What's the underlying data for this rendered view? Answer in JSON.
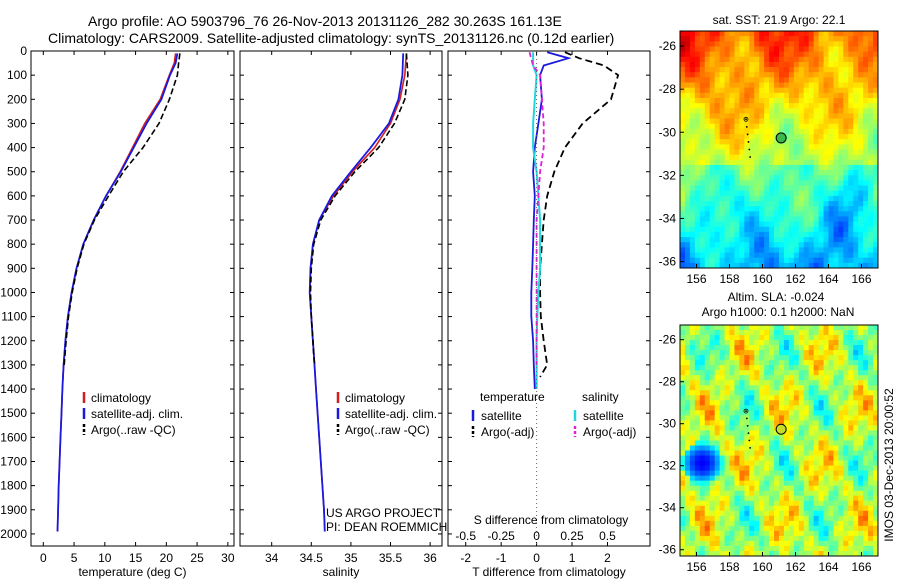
{
  "header": {
    "line1": "Argo profile: AO 5903796_76 26-Nov-2013 20131126_282 30.263S 161.13E",
    "line2": "Climatology: CARS2009. Satellite-adjusted climatology: synTS_20131126.nc (0.12d earlier)"
  },
  "colors": {
    "climatology": "#d11f1f",
    "satellite": "#1a1adf",
    "argo": "#000000",
    "s_satellite": "#22d6e0",
    "s_argo": "#e020d8"
  },
  "depth_axis": {
    "ticks": [
      0,
      100,
      200,
      300,
      400,
      500,
      600,
      700,
      800,
      900,
      1000,
      1100,
      1200,
      1300,
      1400,
      1500,
      1600,
      1700,
      1800,
      1900,
      2000
    ]
  },
  "legends": {
    "climatology": "climatology",
    "satellite_clim": "satellite-adj. clim.",
    "argo_raw": "Argo(..raw -QC)",
    "temperature": "temperature",
    "salinity": "salinity",
    "satellite": "satellite",
    "argo_adj": "Argo(-adj)"
  },
  "credits": {
    "line1": "US ARGO PROJECT",
    "line2": "PI: DEAN ROEMMICH"
  },
  "side_stamp": "IMOS 03-Dec-2013 20:00:52",
  "chart_data": [
    {
      "type": "line",
      "id": "temperature",
      "xlabel": "temperature (deg C)",
      "xlim": [
        -2,
        31
      ],
      "xticks": [
        0,
        5,
        10,
        15,
        20,
        25,
        30
      ],
      "ylim": [
        0,
        2050
      ],
      "series": [
        {
          "name": "climatology",
          "points": [
            [
              21.5,
              10
            ],
            [
              21.3,
              50
            ],
            [
              20.5,
              100
            ],
            [
              19,
              200
            ],
            [
              16.5,
              300
            ],
            [
              14.5,
              400
            ],
            [
              12.5,
              500
            ],
            [
              10.2,
              600
            ],
            [
              8.2,
              700
            ],
            [
              6.5,
              800
            ],
            [
              5.4,
              900
            ],
            [
              4.6,
              1000
            ],
            [
              4,
              1100
            ],
            [
              3.6,
              1200
            ],
            [
              3.3,
              1300
            ],
            [
              3.1,
              1400
            ],
            [
              2.95,
              1500
            ],
            [
              2.8,
              1600
            ],
            [
              2.65,
              1700
            ],
            [
              2.5,
              1800
            ],
            [
              2.4,
              1900
            ],
            [
              2.3,
              1990
            ]
          ]
        },
        {
          "name": "satellite-adj. clim.",
          "points": [
            [
              21.8,
              10
            ],
            [
              21.5,
              50
            ],
            [
              20.6,
              100
            ],
            [
              19.2,
              200
            ],
            [
              16.8,
              300
            ],
            [
              14.7,
              400
            ],
            [
              12.6,
              500
            ],
            [
              10.2,
              600
            ],
            [
              8.2,
              700
            ],
            [
              6.5,
              800
            ],
            [
              5.4,
              900
            ],
            [
              4.6,
              1000
            ],
            [
              4,
              1100
            ],
            [
              3.6,
              1200
            ],
            [
              3.3,
              1300
            ],
            [
              3.1,
              1400
            ],
            [
              2.95,
              1500
            ],
            [
              2.8,
              1600
            ],
            [
              2.65,
              1700
            ],
            [
              2.5,
              1800
            ],
            [
              2.4,
              1900
            ],
            [
              2.3,
              1990
            ]
          ]
        },
        {
          "name": "Argo(..raw -QC)",
          "points": [
            [
              22.2,
              10
            ],
            [
              22,
              50
            ],
            [
              21.8,
              100
            ],
            [
              20.5,
              200
            ],
            [
              18.8,
              300
            ],
            [
              16.2,
              400
            ],
            [
              13,
              500
            ],
            [
              10.6,
              600
            ],
            [
              8.3,
              700
            ],
            [
              6.6,
              800
            ],
            [
              5.5,
              900
            ],
            [
              4.7,
              1000
            ],
            [
              4.1,
              1100
            ],
            [
              3.7,
              1200
            ],
            [
              3.4,
              1300
            ]
          ]
        }
      ]
    },
    {
      "type": "line",
      "id": "salinity",
      "xlabel": "salinity",
      "xlim": [
        33.6,
        36.15
      ],
      "xticks": [
        34,
        34.5,
        35,
        35.5,
        36
      ],
      "ylim": [
        0,
        2050
      ],
      "series": [
        {
          "name": "climatology",
          "points": [
            [
              35.7,
              10
            ],
            [
              35.68,
              100
            ],
            [
              35.62,
              200
            ],
            [
              35.5,
              300
            ],
            [
              35.3,
              400
            ],
            [
              35.02,
              500
            ],
            [
              34.78,
              600
            ],
            [
              34.6,
              700
            ],
            [
              34.52,
              800
            ],
            [
              34.49,
              900
            ],
            [
              34.48,
              1000
            ],
            [
              34.5,
              1100
            ],
            [
              34.52,
              1200
            ],
            [
              34.54,
              1300
            ],
            [
              34.56,
              1400
            ],
            [
              34.58,
              1500
            ],
            [
              34.6,
              1600
            ],
            [
              34.62,
              1700
            ],
            [
              34.64,
              1800
            ],
            [
              34.66,
              1900
            ],
            [
              34.67,
              1990
            ]
          ]
        },
        {
          "name": "satellite-adj. clim.",
          "points": [
            [
              35.66,
              10
            ],
            [
              35.65,
              100
            ],
            [
              35.6,
              200
            ],
            [
              35.48,
              300
            ],
            [
              35.25,
              400
            ],
            [
              35,
              500
            ],
            [
              34.76,
              600
            ],
            [
              34.6,
              700
            ],
            [
              34.52,
              800
            ],
            [
              34.49,
              900
            ],
            [
              34.48,
              1000
            ],
            [
              34.5,
              1100
            ],
            [
              34.52,
              1200
            ],
            [
              34.54,
              1300
            ],
            [
              34.56,
              1400
            ],
            [
              34.58,
              1500
            ],
            [
              34.6,
              1600
            ],
            [
              34.62,
              1700
            ],
            [
              34.64,
              1800
            ],
            [
              34.66,
              1900
            ],
            [
              34.67,
              1990
            ]
          ]
        },
        {
          "name": "Argo(..raw -QC)",
          "points": [
            [
              35.7,
              10
            ],
            [
              35.72,
              100
            ],
            [
              35.68,
              200
            ],
            [
              35.55,
              300
            ],
            [
              35.35,
              400
            ],
            [
              35.05,
              500
            ],
            [
              34.8,
              600
            ],
            [
              34.62,
              700
            ],
            [
              34.53,
              800
            ],
            [
              34.5,
              900
            ],
            [
              34.49,
              1000
            ],
            [
              34.5,
              1100
            ],
            [
              34.52,
              1200
            ],
            [
              34.54,
              1300
            ]
          ]
        }
      ]
    },
    {
      "type": "line",
      "id": "difference",
      "xlabel": "T difference from climatology",
      "xlabel_top": "S difference from climatology",
      "xlim": [
        -2.5,
        3.2
      ],
      "xticks": [
        -2,
        -1,
        0,
        1,
        2
      ],
      "top_ticks": [
        {
          "label": "-0.5",
          "t": -2
        },
        {
          "label": "-0.25",
          "t": -1
        },
        {
          "label": "0",
          "t": 0
        },
        {
          "label": "0.25",
          "t": 1
        },
        {
          "label": "0.5",
          "t": 2
        }
      ],
      "ylim": [
        0,
        2050
      ],
      "series": [
        {
          "name": "temperature satellite",
          "points": [
            [
              0.3,
              5
            ],
            [
              0.9,
              30
            ],
            [
              0.2,
              60
            ],
            [
              0.1,
              100
            ],
            [
              0.15,
              200
            ],
            [
              0.05,
              300
            ],
            [
              -0.05,
              400
            ],
            [
              -0.1,
              500
            ],
            [
              -0.05,
              600
            ],
            [
              -0.08,
              700
            ],
            [
              -0.1,
              800
            ],
            [
              -0.12,
              900
            ],
            [
              -0.15,
              1000
            ],
            [
              -0.15,
              1100
            ],
            [
              -0.1,
              1200
            ],
            [
              -0.08,
              1300
            ],
            [
              -0.05,
              1400
            ]
          ]
        },
        {
          "name": "temperature Argo(-adj)",
          "points": [
            [
              0.8,
              5
            ],
            [
              1.2,
              30
            ],
            [
              1.9,
              60
            ],
            [
              2.3,
              100
            ],
            [
              2.1,
              200
            ],
            [
              1.3,
              300
            ],
            [
              0.8,
              400
            ],
            [
              0.5,
              500
            ],
            [
              0.3,
              600
            ],
            [
              0.2,
              700
            ],
            [
              0.15,
              800
            ],
            [
              0.1,
              900
            ],
            [
              0.1,
              1000
            ],
            [
              0.12,
              1100
            ],
            [
              0.2,
              1200
            ],
            [
              0.3,
              1300
            ],
            [
              0.1,
              1350
            ]
          ]
        },
        {
          "name": "salinity satellite",
          "points": [
            [
              -0.1,
              5
            ],
            [
              -0.1,
              60
            ],
            [
              0,
              100
            ],
            [
              -0.05,
              200
            ],
            [
              -0.1,
              300
            ],
            [
              -0.1,
              400
            ],
            [
              0,
              500
            ],
            [
              0.05,
              600
            ],
            [
              0.1,
              700
            ],
            [
              0.1,
              800
            ],
            [
              0.1,
              900
            ],
            [
              0.05,
              1000
            ],
            [
              0.02,
              1100
            ],
            [
              0,
              1200
            ],
            [
              0,
              1300
            ],
            [
              0,
              1400
            ]
          ]
        },
        {
          "name": "salinity Argo(-adj)",
          "points": [
            [
              -0.2,
              5
            ],
            [
              -0.1,
              60
            ],
            [
              0.1,
              100
            ],
            [
              0.15,
              200
            ],
            [
              0.2,
              300
            ],
            [
              0.2,
              400
            ],
            [
              0.1,
              500
            ],
            [
              0.05,
              600
            ],
            [
              0,
              700
            ],
            [
              0,
              800
            ],
            [
              0,
              900
            ],
            [
              0,
              1000
            ],
            [
              0,
              1100
            ],
            [
              0,
              1200
            ],
            [
              0,
              1300
            ]
          ]
        }
      ]
    },
    {
      "type": "heatmap",
      "id": "sst-map",
      "title": "sat. SST: 21.9 Argo: 22.1",
      "xlim": [
        155,
        167
      ],
      "ylim": [
        -36.3,
        -25.3
      ],
      "xticks": [
        156,
        158,
        160,
        162,
        164,
        166
      ],
      "yticks": [
        -26,
        -28,
        -30,
        -32,
        -34,
        -36
      ],
      "argo_position": [
        161.13,
        -30.263
      ]
    },
    {
      "type": "heatmap",
      "id": "sla-map",
      "title": "Altim. SLA: -0.024",
      "subtitle": "Argo h1000: 0.1 h2000: NaN",
      "xlim": [
        155,
        167
      ],
      "ylim": [
        -36.3,
        -25.3
      ],
      "xticks": [
        156,
        158,
        160,
        162,
        164,
        166
      ],
      "yticks": [
        -26,
        -28,
        -30,
        -32,
        -34,
        -36
      ],
      "argo_position": [
        161.13,
        -30.263
      ]
    }
  ]
}
